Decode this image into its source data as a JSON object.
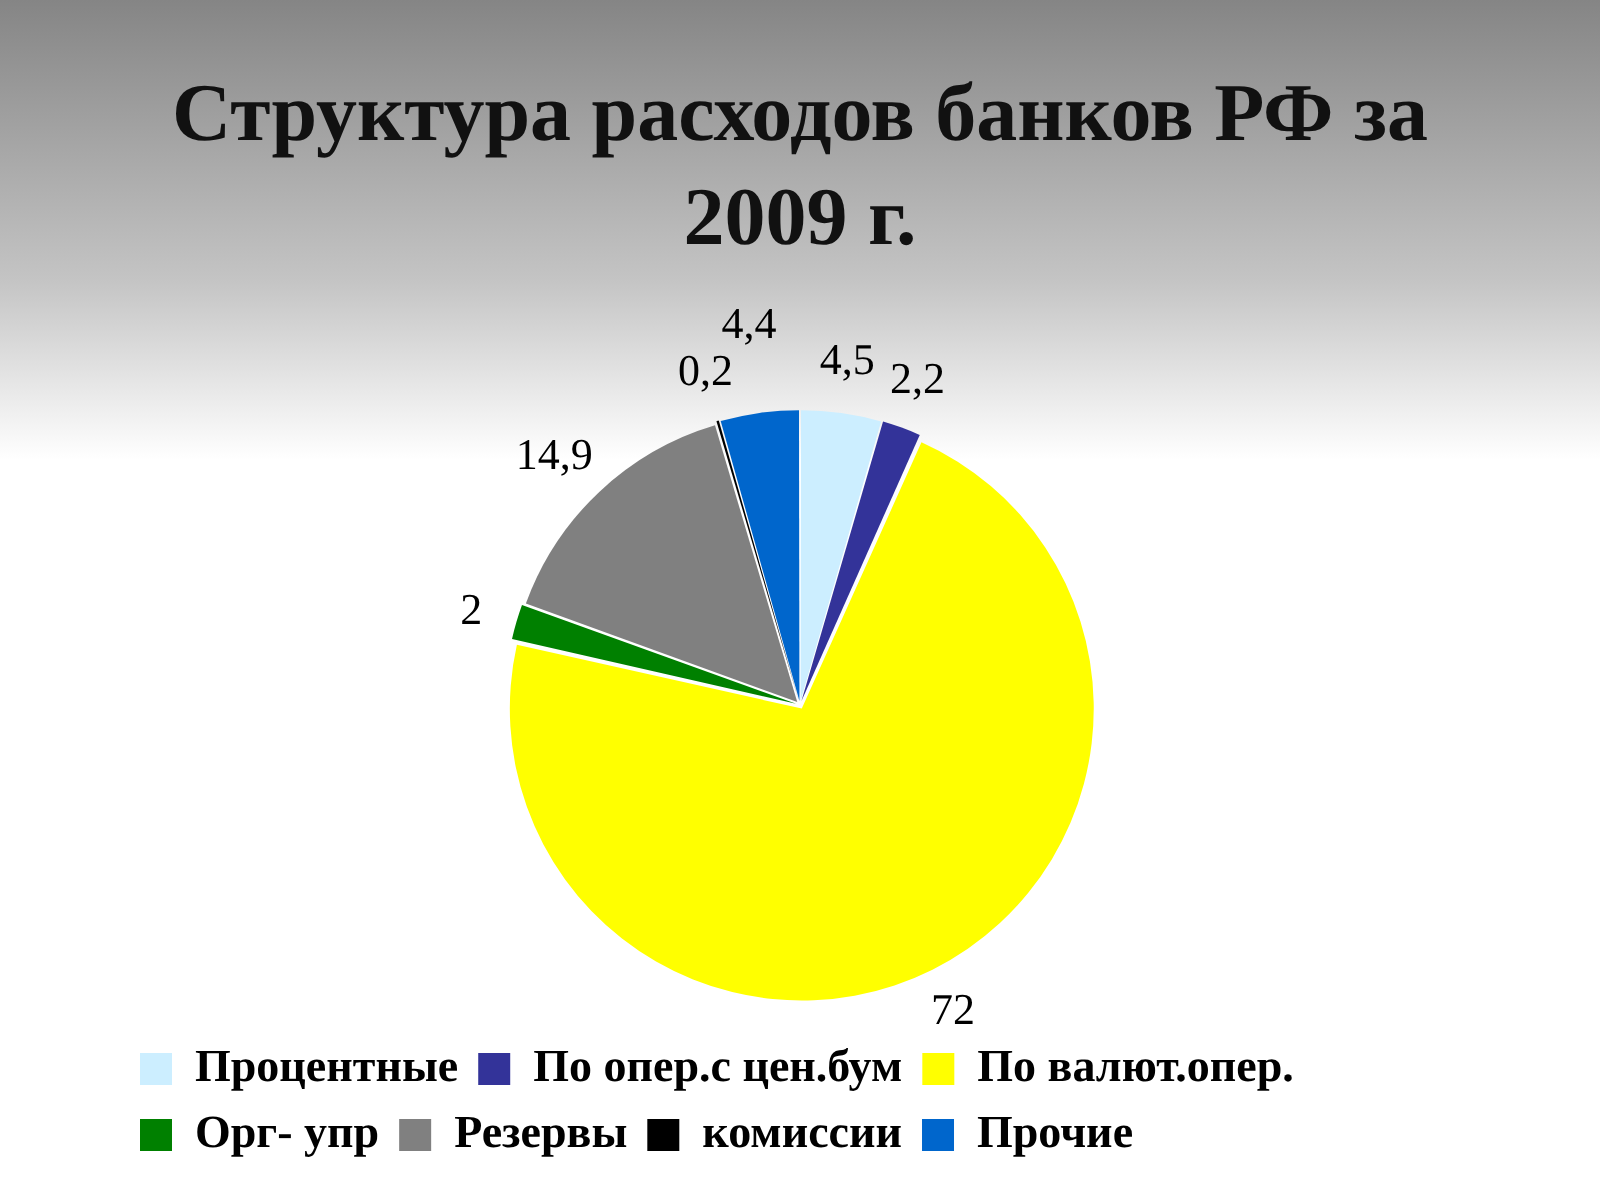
{
  "chart_data": {
    "type": "pie",
    "title": "Структура расходов банков РФ за 2009 г.",
    "categories": [
      "Процентные",
      "По опер.с цен.бум",
      "По валют.опер.",
      "Орг- упр",
      "Резервы",
      "комиссии",
      "Прочие"
    ],
    "values": [
      4.5,
      2.2,
      72,
      2,
      14.9,
      0.2,
      4.4
    ],
    "colors": [
      "#cceeff",
      "#333399",
      "#ffff00",
      "#008000",
      "#808080",
      "#000000",
      "#0066cc"
    ],
    "value_labels": [
      "4,5",
      "2,2",
      "72",
      "2",
      "14,9",
      "0,2",
      "4,4"
    ],
    "legend": "bottom"
  }
}
